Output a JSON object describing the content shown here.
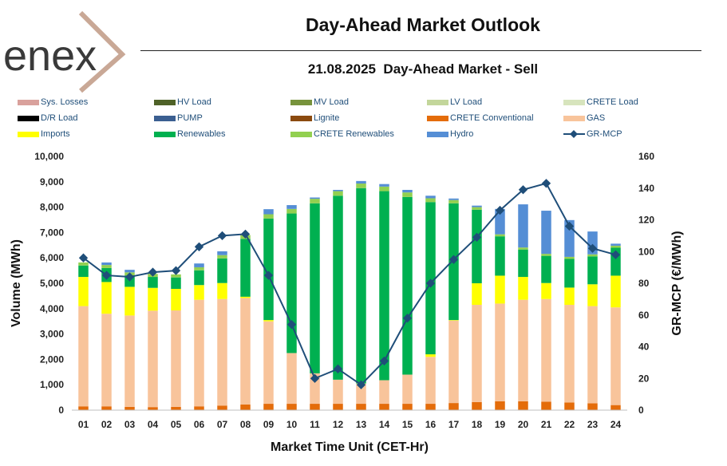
{
  "header": {
    "logo_text": "enex",
    "title": "Day-Ahead Market Outlook",
    "subtitle": "21.08.2025  Day-Ahead Market - Sell"
  },
  "legend": [
    {
      "name": "Sys. Losses",
      "color": "#d9a19c",
      "kind": "bar"
    },
    {
      "name": "HV Load",
      "color": "#4f6228",
      "kind": "bar"
    },
    {
      "name": "MV Load",
      "color": "#77933c",
      "kind": "bar"
    },
    {
      "name": "LV Load",
      "color": "#c3d69b",
      "kind": "bar"
    },
    {
      "name": "CRETE Load",
      "color": "#d7e4bd",
      "kind": "bar"
    },
    {
      "name": "D/R Load",
      "color": "#000000",
      "kind": "bar"
    },
    {
      "name": "PUMP",
      "color": "#3b5f91",
      "kind": "bar"
    },
    {
      "name": "Lignite",
      "color": "#8b4a0f",
      "kind": "bar"
    },
    {
      "name": "CRETE Conventional",
      "color": "#e46c0a",
      "kind": "bar"
    },
    {
      "name": "GAS",
      "color": "#f8c49b",
      "kind": "bar"
    },
    {
      "name": "Imports",
      "color": "#ffff00",
      "kind": "bar"
    },
    {
      "name": "Renewables",
      "color": "#00b050",
      "kind": "bar"
    },
    {
      "name": "CRETE Renewables",
      "color": "#92d050",
      "kind": "bar"
    },
    {
      "name": "Hydro",
      "color": "#558ed5",
      "kind": "bar"
    },
    {
      "name": "GR-MCP",
      "color": "#1f4e79",
      "kind": "line"
    }
  ],
  "chart_data": {
    "type": "bar",
    "title": "21.08.2025  Day-Ahead Market - Sell",
    "xlabel": "Market Time Unit (CET-Hr)",
    "ylabel": "Volume (MWh)",
    "y2label": "GR-MCP (€/MWh)",
    "ylim": [
      0,
      10000
    ],
    "y2lim": [
      0,
      160
    ],
    "yticks": [
      "0",
      "1,000",
      "2,000",
      "3,000",
      "4,000",
      "5,000",
      "6,000",
      "7,000",
      "8,000",
      "9,000",
      "10,000"
    ],
    "y2ticks": [
      "0",
      "20",
      "40",
      "60",
      "80",
      "100",
      "120",
      "140",
      "160"
    ],
    "categories": [
      "01",
      "02",
      "03",
      "04",
      "05",
      "06",
      "07",
      "08",
      "09",
      "10",
      "11",
      "12",
      "13",
      "14",
      "15",
      "16",
      "17",
      "18",
      "19",
      "20",
      "21",
      "22",
      "23",
      "24"
    ],
    "series": [
      {
        "name": "CRETE Conventional",
        "color": "#e46c0a",
        "values": [
          150,
          150,
          130,
          120,
          130,
          150,
          180,
          220,
          250,
          250,
          250,
          250,
          250,
          250,
          250,
          250,
          280,
          320,
          350,
          350,
          330,
          300,
          270,
          200
        ]
      },
      {
        "name": "GAS",
        "color": "#f8c49b",
        "values": [
          3950,
          3650,
          3600,
          3800,
          3800,
          4200,
          4200,
          4200,
          3250,
          2000,
          1200,
          950,
          800,
          930,
          1150,
          1850,
          3250,
          3830,
          3850,
          4000,
          4050,
          3850,
          3830,
          3850
        ]
      },
      {
        "name": "Imports",
        "color": "#ffff00",
        "values": [
          1150,
          1250,
          1130,
          900,
          850,
          580,
          630,
          50,
          50,
          0,
          0,
          0,
          0,
          0,
          0,
          100,
          20,
          850,
          1100,
          900,
          630,
          680,
          860,
          1250
        ]
      },
      {
        "name": "Renewables",
        "color": "#00b050",
        "values": [
          450,
          550,
          450,
          430,
          450,
          580,
          970,
          2280,
          4000,
          5500,
          6700,
          7250,
          7700,
          7450,
          7000,
          6000,
          4600,
          2900,
          1550,
          1080,
          1070,
          1130,
          1100,
          1100
        ]
      },
      {
        "name": "CRETE Renewables",
        "color": "#92d050",
        "values": [
          120,
          120,
          120,
          120,
          120,
          120,
          130,
          150,
          170,
          180,
          180,
          180,
          180,
          180,
          180,
          150,
          130,
          100,
          80,
          80,
          80,
          80,
          80,
          80
        ]
      },
      {
        "name": "Hydro",
        "color": "#558ed5",
        "values": [
          0,
          100,
          100,
          0,
          0,
          150,
          150,
          0,
          200,
          150,
          50,
          50,
          100,
          100,
          100,
          100,
          60,
          60,
          1000,
          1700,
          1700,
          1450,
          900,
          80
        ]
      }
    ],
    "line_series": {
      "name": "GR-MCP",
      "color": "#1f4e79",
      "axis": "right",
      "values": [
        96,
        85,
        84,
        87,
        88,
        103,
        110,
        111,
        85,
        54,
        20,
        26,
        16,
        31,
        58,
        80,
        95,
        109,
        126,
        139,
        143,
        116,
        102,
        98
      ]
    }
  }
}
